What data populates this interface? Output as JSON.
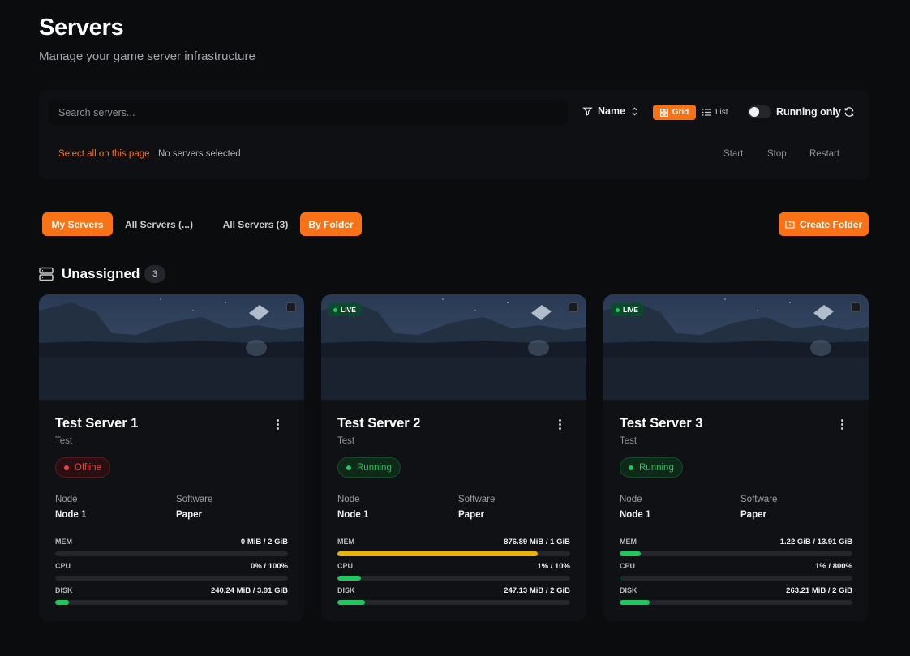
{
  "header": {
    "title": "Servers",
    "subtitle": "Manage your game server infrastructure"
  },
  "toolbar": {
    "search_placeholder": "Search servers...",
    "sort_label": "Name",
    "view_grid": "Grid",
    "view_list": "List",
    "running_only": "Running only",
    "select_all": "Select all on this page",
    "selection_status": "No servers selected",
    "start": "Start",
    "stop": "Stop",
    "restart": "Restart"
  },
  "tabs": [
    {
      "label": "My Servers",
      "active": true
    },
    {
      "label": "All Servers (...)",
      "active": false
    },
    {
      "label": "All Servers (3)",
      "active": false
    },
    {
      "label": "By Folder",
      "active": true
    }
  ],
  "create_folder": "Create Folder",
  "group": {
    "title": "Unassigned",
    "count": "3"
  },
  "labels": {
    "node": "Node",
    "software": "Software",
    "mem": "MEM",
    "cpu": "CPU",
    "disk": "DISK",
    "live": "LIVE"
  },
  "colors": {
    "accent": "#f97316",
    "green": "#22c55e",
    "yellow": "#eab308",
    "red": "#ef4444"
  },
  "servers": [
    {
      "name": "Test Server 1",
      "desc": "Test",
      "status": "Offline",
      "live": false,
      "node": "Node 1",
      "software": "Paper",
      "mem": "0 MiB / 2 GiB",
      "mem_pct": 0,
      "cpu": "0% / 100%",
      "cpu_pct": 0,
      "disk": "240.24 MiB / 3.91 GiB",
      "disk_pct": 6
    },
    {
      "name": "Test Server 2",
      "desc": "Test",
      "status": "Running",
      "live": true,
      "node": "Node 1",
      "software": "Paper",
      "mem": "876.89 MiB / 1 GiB",
      "mem_pct": 86,
      "cpu": "1% / 10%",
      "cpu_pct": 10,
      "disk": "247.13 MiB / 2 GiB",
      "disk_pct": 12
    },
    {
      "name": "Test Server 3",
      "desc": "Test",
      "status": "Running",
      "live": true,
      "node": "Node 1",
      "software": "Paper",
      "mem": "1.22 GiB / 13.91 GiB",
      "mem_pct": 9,
      "cpu": "1% / 800%",
      "cpu_pct": 0.1,
      "disk": "263.21 MiB / 2 GiB",
      "disk_pct": 13
    }
  ]
}
